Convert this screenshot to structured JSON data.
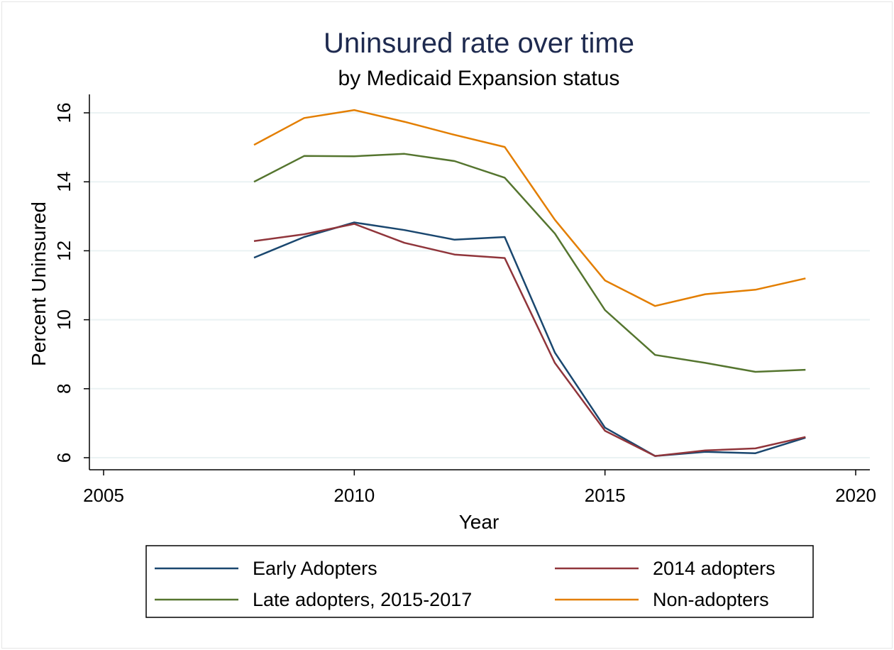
{
  "chart_data": {
    "type": "line",
    "title": "Uninsured rate over time",
    "subtitle": "by Medicaid Expansion status",
    "xlabel": "Year",
    "ylabel": "Percent Uninsured",
    "xlim": [
      2005,
      2020
    ],
    "ylim": [
      6,
      16
    ],
    "xticks": [
      2005,
      2010,
      2015,
      2020
    ],
    "yticks": [
      6,
      8,
      10,
      12,
      14,
      16
    ],
    "grid": "horizontal",
    "legend_position": "bottom",
    "x": [
      2008,
      2009,
      2010,
      2011,
      2012,
      2013,
      2014,
      2015,
      2016,
      2017,
      2018,
      2019
    ],
    "series": [
      {
        "name": "Early Adopters",
        "color": "#1a476f",
        "values": [
          11.8,
          12.4,
          12.82,
          12.6,
          12.32,
          12.4,
          9.05,
          6.87,
          6.05,
          6.17,
          6.13,
          6.58
        ]
      },
      {
        "name": "2014 adopters",
        "color": "#90353b",
        "values": [
          12.28,
          12.48,
          12.78,
          12.23,
          11.89,
          11.79,
          8.75,
          6.78,
          6.05,
          6.21,
          6.27,
          6.6
        ]
      },
      {
        "name": "Late adopters, 2015-2017",
        "color": "#55752f",
        "values": [
          14.0,
          14.75,
          14.74,
          14.81,
          14.6,
          14.12,
          12.5,
          10.28,
          8.98,
          8.75,
          8.49,
          8.55
        ]
      },
      {
        "name": "Non-adopters",
        "color": "#e37e00",
        "values": [
          15.07,
          15.85,
          16.08,
          15.74,
          15.36,
          15.01,
          12.9,
          11.14,
          10.4,
          10.74,
          10.87,
          11.2
        ]
      }
    ]
  }
}
